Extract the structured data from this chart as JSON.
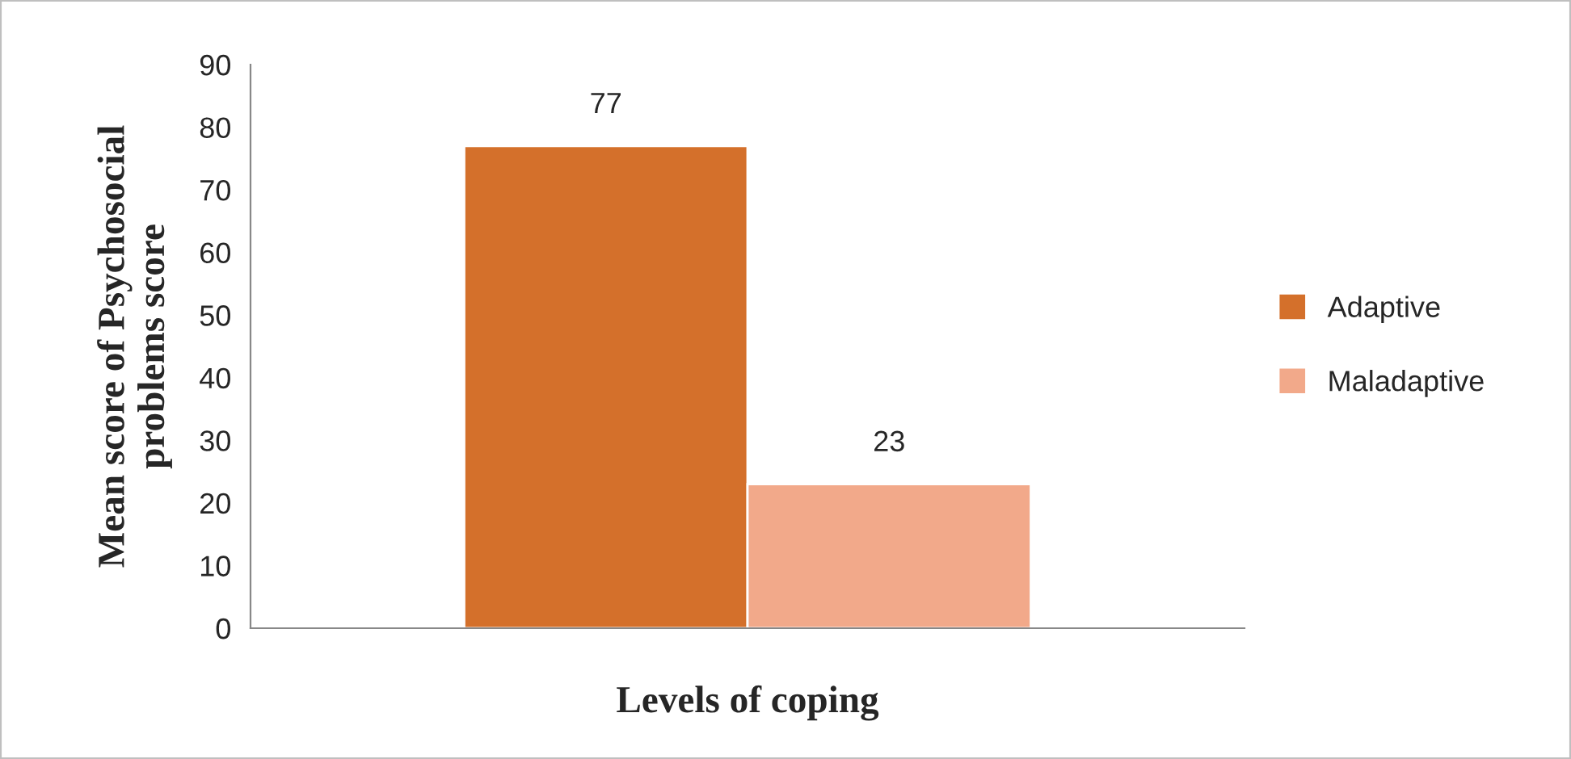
{
  "chart_data": {
    "type": "bar",
    "xlabel": "Levels of coping",
    "ylabel": "Mean score of Psychosocial\nproblems score",
    "categories": [
      null
    ],
    "series": [
      {
        "name": "Adaptive",
        "color": "#d4702b",
        "values": [
          77
        ]
      },
      {
        "name": "Maladaptive",
        "color": "#f2a98a",
        "values": [
          23
        ]
      }
    ],
    "ylim": [
      0,
      90
    ],
    "yticks": [
      0,
      10,
      20,
      30,
      40,
      50,
      60,
      70,
      80,
      90
    ],
    "grid": false,
    "legend": "right",
    "data_labels": true
  }
}
